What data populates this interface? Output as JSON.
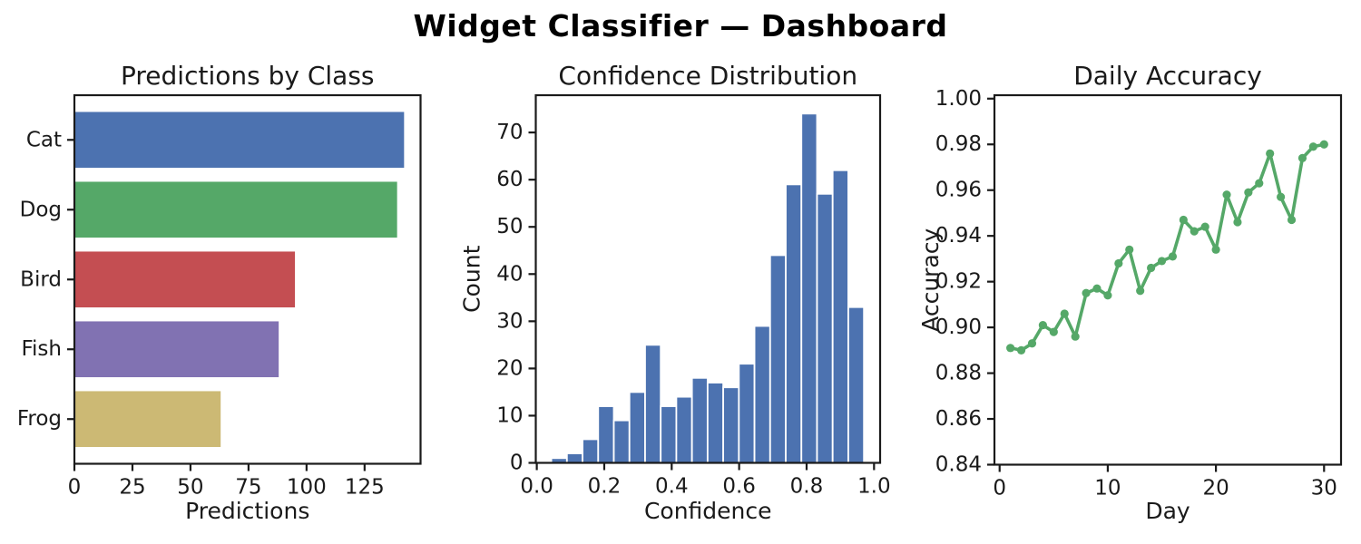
{
  "figure": {
    "title": "Widget Classifier — Dashboard"
  },
  "chart_data": [
    {
      "type": "bar",
      "orientation": "horizontal",
      "title": "Predictions by Class",
      "xlabel": "Predictions",
      "ylabel": "",
      "categories": [
        "Cat",
        "Dog",
        "Bird",
        "Fish",
        "Frog"
      ],
      "values": [
        142,
        139,
        95,
        88,
        63
      ],
      "bar_colors": [
        "#4C72B0",
        "#55A868",
        "#C44E52",
        "#8172B2",
        "#CCB974"
      ],
      "xlim": [
        0,
        149.1
      ],
      "xticks": [
        0,
        25,
        50,
        75,
        100,
        125
      ],
      "xtick_labels": [
        "0",
        "25",
        "50",
        "75",
        "100",
        "125"
      ],
      "grid": false,
      "legend": null
    },
    {
      "type": "histogram",
      "title": "Confidence Distribution",
      "xlabel": "Confidence",
      "ylabel": "Count",
      "bar_color": "#4C72B0",
      "bin_start": 0.043,
      "bin_width": 0.04635,
      "counts": [
        1,
        2,
        5,
        12,
        9,
        15,
        25,
        12,
        14,
        18,
        17,
        16,
        21,
        29,
        44,
        59,
        74,
        57,
        62,
        33
      ],
      "xlim": [
        -0.003,
        1.018
      ],
      "ylim": [
        0,
        77.9
      ],
      "xticks": [
        0,
        0.2,
        0.4,
        0.6,
        0.8,
        1.0
      ],
      "xtick_labels": [
        "0.0",
        "0.2",
        "0.4",
        "0.6",
        "0.8",
        "1.0"
      ],
      "yticks": [
        0,
        10,
        20,
        30,
        40,
        50,
        60,
        70
      ],
      "ytick_labels": [
        "0",
        "10",
        "20",
        "30",
        "40",
        "50",
        "60",
        "70"
      ],
      "grid": false,
      "legend": null
    },
    {
      "type": "line",
      "title": "Daily Accuracy",
      "xlabel": "Day",
      "ylabel": "Accuracy",
      "line_color": "#55A868",
      "marker": "circle",
      "x": [
        1,
        2,
        3,
        4,
        5,
        6,
        7,
        8,
        9,
        10,
        11,
        12,
        13,
        14,
        15,
        16,
        17,
        18,
        19,
        20,
        21,
        22,
        23,
        24,
        25,
        26,
        27,
        28,
        29,
        30
      ],
      "y": [
        0.891,
        0.89,
        0.893,
        0.901,
        0.898,
        0.906,
        0.896,
        0.915,
        0.917,
        0.914,
        0.928,
        0.934,
        0.916,
        0.926,
        0.929,
        0.931,
        0.947,
        0.942,
        0.944,
        0.934,
        0.958,
        0.946,
        0.959,
        0.963,
        0.976,
        0.957,
        0.947,
        0.974,
        0.979,
        0.98
      ],
      "xlim": [
        -0.48,
        31.57
      ],
      "ylim": [
        0.84,
        1.0015
      ],
      "xticks": [
        0,
        10,
        20,
        30
      ],
      "xtick_labels": [
        "0",
        "10",
        "20",
        "30"
      ],
      "yticks": [
        0.84,
        0.86,
        0.88,
        0.9,
        0.92,
        0.94,
        0.96,
        0.98,
        1.0
      ],
      "ytick_labels": [
        "0.84",
        "0.86",
        "0.88",
        "0.90",
        "0.92",
        "0.94",
        "0.96",
        "0.98",
        "1.00"
      ],
      "grid": false,
      "legend": null
    }
  ]
}
